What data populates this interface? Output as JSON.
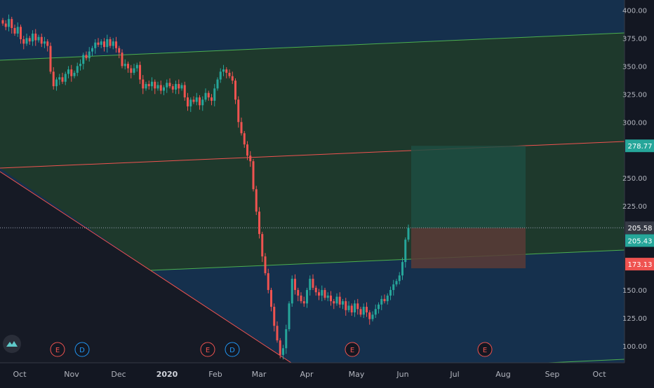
{
  "chart_data": {
    "type": "candlestick",
    "y_axis": {
      "ticks": [
        "400.00",
        "375.00",
        "350.00",
        "325.00",
        "300.00",
        "250.00",
        "225.00",
        "150.00",
        "125.00",
        "100.00"
      ],
      "tick_values": [
        400,
        375,
        350,
        325,
        300,
        250,
        225,
        150,
        125,
        100
      ],
      "range": [
        85,
        409
      ]
    },
    "x_axis": {
      "labels": [
        "Oct",
        "Nov",
        "Dec",
        "2020",
        "Feb",
        "Mar",
        "Apr",
        "May",
        "Jun",
        "Jul",
        "Aug",
        "Sep",
        "Oct"
      ],
      "bold_labels": [
        "2020"
      ]
    },
    "price_labels": [
      {
        "text": "278.77",
        "value": 278.77,
        "color": "#26a69a",
        "role": "take-profit"
      },
      {
        "text": "205.58",
        "value": 205.58,
        "color": "#363a45",
        "role": "crosshair"
      },
      {
        "text": "205.43",
        "value": 205.43,
        "color": "#26a69a",
        "role": "last-price"
      },
      {
        "text": "173.13",
        "value": 173.13,
        "color": "#ef5350",
        "role": "stop-loss"
      }
    ],
    "event_markers": [
      {
        "letter": "E",
        "type": "earnings"
      },
      {
        "letter": "D",
        "type": "dividend"
      },
      {
        "letter": "E",
        "type": "earnings"
      },
      {
        "letter": "D",
        "type": "dividend"
      },
      {
        "letter": "E",
        "type": "earnings"
      },
      {
        "letter": "E",
        "type": "earnings"
      }
    ],
    "candles_close": [
      388,
      385,
      392,
      384,
      379,
      385,
      374,
      370,
      375,
      372,
      379,
      373,
      376,
      370,
      372,
      368,
      345,
      332,
      338,
      340,
      336,
      343,
      347,
      341,
      344,
      350,
      352,
      360,
      357,
      363,
      366,
      371,
      369,
      372,
      367,
      374,
      368,
      372,
      366,
      362,
      350,
      352,
      348,
      344,
      348,
      351,
      338,
      330,
      334,
      332,
      336,
      330,
      333,
      328,
      331,
      335,
      332,
      329,
      334,
      330,
      333,
      322,
      314,
      320,
      318,
      322,
      315,
      320,
      326,
      322,
      319,
      330,
      338,
      345,
      347,
      344,
      341,
      337,
      320,
      300,
      290,
      280,
      270,
      265,
      240,
      220,
      200,
      180,
      165,
      150,
      135,
      118,
      105,
      92,
      98,
      115,
      138,
      160,
      150,
      145,
      140,
      138,
      150,
      160,
      152,
      148,
      145,
      150,
      143,
      145,
      140,
      138,
      144,
      137,
      140,
      132,
      136,
      130,
      138,
      133,
      128,
      135,
      130,
      124,
      128,
      133,
      137,
      142,
      140,
      145,
      150,
      155,
      158,
      163,
      175,
      195,
      205.43
    ],
    "candle_start_x": 4,
    "candle_step": 4.25,
    "levels": {
      "tp": 278.77,
      "stop": 173.13,
      "entry": 205.43,
      "crosshair": 205.58
    },
    "colors": {
      "up": "#26a69a",
      "down": "#ef5350",
      "channel_top": "#2e7d32",
      "channel_line": "#4caf50",
      "mid_line": "#ef5350",
      "sky": "#15304d",
      "dark": "#161a25"
    }
  },
  "logo": {
    "icon": "tradingview-logo-icon"
  }
}
